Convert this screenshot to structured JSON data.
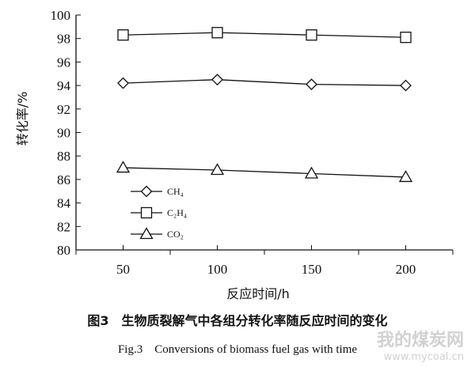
{
  "chart_data": {
    "type": "line",
    "x": [
      50,
      100,
      150,
      200
    ],
    "series": [
      {
        "name": "CH₄",
        "values": [
          94.2,
          94.5,
          94.1,
          94.0
        ],
        "marker": "diamond"
      },
      {
        "name": "C₂H₄",
        "values": [
          98.3,
          98.5,
          98.3,
          98.1
        ],
        "marker": "square"
      },
      {
        "name": "CO₂",
        "values": [
          87.0,
          86.8,
          86.5,
          86.2
        ],
        "marker": "triangle"
      }
    ],
    "xlabel": "反应时间/h",
    "ylabel": "转化率/%",
    "xticks": [
      50,
      100,
      150,
      200
    ],
    "yticks": [
      80,
      82,
      84,
      86,
      88,
      90,
      92,
      94,
      96,
      98,
      100
    ],
    "xlim": [
      25,
      225
    ],
    "ylim": [
      80,
      100
    ],
    "grid": false,
    "legend_position": "lower-left",
    "line_color": "#111111"
  },
  "caption": {
    "cn": "图3　生物质裂解气中各组分转化率随反应时间的变化",
    "en": "Fig.3　Conversions of biomass fuel gas with time"
  },
  "watermark": {
    "text": "我的煤炭网",
    "url": "www.mycoal.cn"
  }
}
